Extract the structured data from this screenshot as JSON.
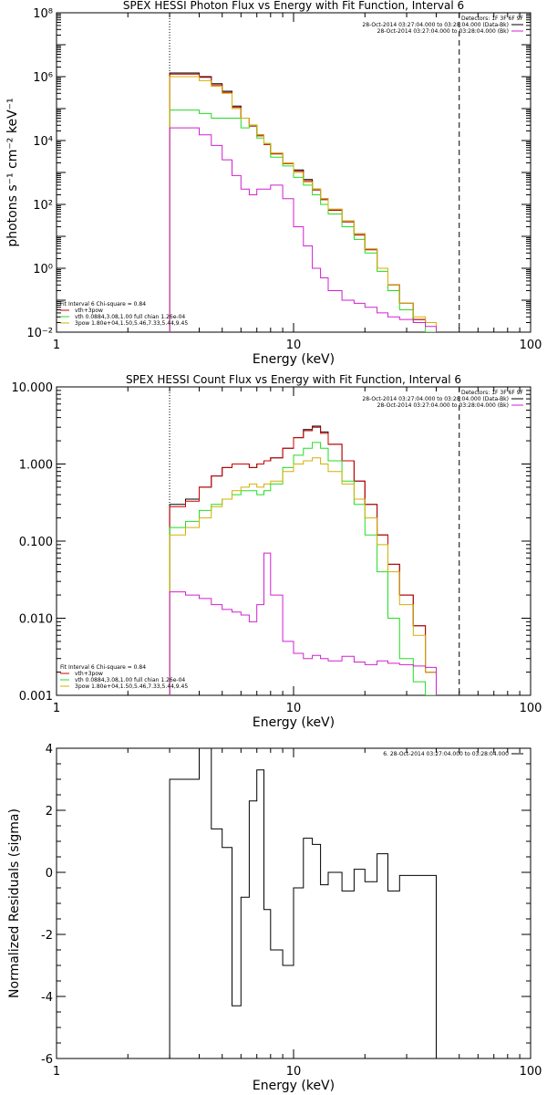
{
  "chart_data": [
    {
      "type": "line",
      "title": "SPEX HESSI Photon Flux vs Energy with Fit Function, Interval 6",
      "xlabel": "Energy (keV)",
      "ylabel": "photons s⁻¹ cm⁻² keV⁻¹",
      "xscale": "log",
      "yscale": "log",
      "xlim": [
        1,
        100
      ],
      "ylim": [
        0.01,
        100000000
      ],
      "xticks": [
        {
          "v": 1,
          "label": "1"
        },
        {
          "v": 10,
          "label": "10"
        },
        {
          "v": 100,
          "label": "100"
        }
      ],
      "yticks": [
        {
          "v": 0.01,
          "label": "10⁻²"
        },
        {
          "v": 1,
          "label": "10⁰"
        },
        {
          "v": 100,
          "label": "10²"
        },
        {
          "v": 10000,
          "label": "10⁴"
        },
        {
          "v": 1000000,
          "label": "10⁶"
        },
        {
          "v": 100000000,
          "label": "10⁸"
        }
      ],
      "vlines": [
        {
          "x": 3.0,
          "style": "dotted"
        },
        {
          "x": 50.0,
          "style": "dashed"
        }
      ],
      "legend_top": [
        {
          "label": "Detectors: 1F 3F 6F 9F",
          "color": ""
        },
        {
          "label": "28-Oct-2014 03:27:04.000 to 03:28:04.000 (Data-Bk)",
          "color": "#000000"
        },
        {
          "label": "28-Oct-2014 03:27:04.000 to 03:28:04.000 (Bk)",
          "color": "#d020d0"
        }
      ],
      "legend_bottom": [
        {
          "label": "Fit Interval 6   Chi-square = 0.84",
          "color": ""
        },
        {
          "label": "vth+3pow",
          "color": "#cc0000"
        },
        {
          "label": "vth 0.0884,3.08,1.00  full chian 1.26e-04",
          "color": "#22dd22"
        },
        {
          "label": "3pow 1.80e+04,1.50,5.46,7.33,5.44,9.45",
          "color": "#d4b000"
        }
      ],
      "series": [
        {
          "color": "#000000",
          "values": [
            1300000.0,
            1300000.0,
            1000000.0,
            600000.0,
            350000.0,
            120000.0,
            50000.0,
            30000.0,
            15000.0,
            8000.0,
            4000.0,
            2000.0,
            1200.0,
            600.0,
            300.0,
            150.0,
            70,
            30,
            12,
            4,
            1,
            0.3,
            0.08,
            0.025,
            0.02
          ]
        },
        {
          "color": "#cc0000",
          "values": [
            1200000.0,
            1200000.0,
            950000.0,
            550000.0,
            320000.0,
            110000.0,
            50000.0,
            28000.0,
            14000.0,
            7500.0,
            3800.0,
            1900.0,
            1100.0,
            550.0,
            280.0,
            140.0,
            65,
            28,
            11,
            3.8,
            1,
            0.3,
            0.08,
            0.025,
            0.02
          ]
        },
        {
          "color": "#22dd22",
          "values": [
            90000.0,
            90000.0,
            70000.0,
            50000.0,
            50000.0,
            50000.0,
            25000.0,
            30000.0,
            12000.0,
            8000.0,
            3000.0,
            1600.0,
            700.0,
            400.0,
            200.0,
            100.0,
            50,
            20,
            8,
            3,
            0.8,
            0.2,
            0.05,
            0.02,
            0.01
          ]
        },
        {
          "color": "#d4b000",
          "values": [
            1000000.0,
            1000000.0,
            750000.0,
            500000.0,
            300000.0,
            100000.0,
            50000.0,
            30000.0,
            15000.0,
            8000.0,
            4000.0,
            2000.0,
            1000.0,
            500.0,
            300.0,
            150.0,
            70,
            30,
            12,
            4,
            1,
            0.3,
            0.08,
            0.03,
            0.02
          ]
        },
        {
          "color": "#d020d0",
          "values": [
            25000.0,
            25000.0,
            15000.0,
            7000.0,
            2500.0,
            800.0,
            300.0,
            200.0,
            300.0,
            300.0,
            400.0,
            150.0,
            20,
            5,
            1,
            0.5,
            0.2,
            0.1,
            0.08,
            0.06,
            0.04,
            0.03,
            0.025,
            0.02,
            0.015
          ]
        }
      ]
    },
    {
      "type": "line",
      "title": "SPEX HESSI Count Flux vs Energy with Fit Function, Interval 6",
      "xlabel": "Energy (keV)",
      "ylabel": "",
      "xscale": "log",
      "yscale": "log",
      "xlim": [
        1,
        100
      ],
      "ylim": [
        0.001,
        10
      ],
      "xticks": [
        {
          "v": 1,
          "label": "1"
        },
        {
          "v": 10,
          "label": "10"
        },
        {
          "v": 100,
          "label": "100"
        }
      ],
      "yticks": [
        {
          "v": 0.001,
          "label": "0.001"
        },
        {
          "v": 0.01,
          "label": "0.010"
        },
        {
          "v": 0.1,
          "label": "0.100"
        },
        {
          "v": 1,
          "label": "1.000"
        },
        {
          "v": 10,
          "label": "10.000"
        }
      ],
      "vlines": [
        {
          "x": 3.0,
          "style": "dotted"
        },
        {
          "x": 50.0,
          "style": "dashed"
        }
      ],
      "legend_top": [
        {
          "label": "Detectors: 1F 3F 6F 9F",
          "color": ""
        },
        {
          "label": "28-Oct-2014 03:27:04.000 to 03:28:04.000 (Data-Bk)",
          "color": "#000000"
        },
        {
          "label": "28-Oct-2014 03:27:04.000 to 03:28:04.000 (Bk)",
          "color": "#d020d0"
        }
      ],
      "legend_bottom": [
        {
          "label": "Fit Interval 6   Chi-square = 0.84",
          "color": ""
        },
        {
          "label": "vth+3pow",
          "color": "#cc0000"
        },
        {
          "label": "vth 0.0884,3.08,1.00  full chian 1.26e-04",
          "color": "#22dd22"
        },
        {
          "label": "3pow 1.80e+04,1.50,5.46,7.33,5.44,9.45",
          "color": "#d4b000"
        }
      ],
      "series": [
        {
          "color": "#000000",
          "values": [
            0.3,
            0.35,
            0.5,
            0.7,
            0.9,
            1.0,
            1.0,
            0.9,
            1.0,
            1.1,
            1.2,
            1.6,
            2.2,
            2.8,
            3.1,
            2.6,
            1.8,
            1.1,
            0.6,
            0.3,
            0.12,
            0.05,
            0.02,
            0.008,
            0.002
          ]
        },
        {
          "color": "#cc0000",
          "values": [
            0.28,
            0.33,
            0.5,
            0.7,
            0.9,
            1.0,
            1.0,
            0.9,
            1.0,
            1.1,
            1.2,
            1.6,
            2.2,
            2.7,
            3.0,
            2.5,
            1.8,
            1.1,
            0.6,
            0.3,
            0.12,
            0.05,
            0.02,
            0.008,
            0.002
          ]
        },
        {
          "color": "#22dd22",
          "values": [
            0.15,
            0.18,
            0.25,
            0.3,
            0.35,
            0.4,
            0.45,
            0.45,
            0.4,
            0.45,
            0.55,
            0.9,
            1.3,
            1.6,
            1.9,
            1.6,
            1.1,
            0.6,
            0.3,
            0.12,
            0.04,
            0.01,
            0.003,
            0.0015,
            0.001
          ]
        },
        {
          "color": "#d4b000",
          "values": [
            0.12,
            0.15,
            0.2,
            0.28,
            0.35,
            0.45,
            0.5,
            0.55,
            0.5,
            0.55,
            0.6,
            0.8,
            1.0,
            1.1,
            1.2,
            1.0,
            0.8,
            0.55,
            0.35,
            0.2,
            0.09,
            0.04,
            0.015,
            0.006,
            0.002
          ]
        },
        {
          "color": "#d020d0",
          "values": [
            0.022,
            0.02,
            0.018,
            0.015,
            0.013,
            0.012,
            0.011,
            0.009,
            0.015,
            0.07,
            0.02,
            0.005,
            0.0035,
            0.003,
            0.0033,
            0.003,
            0.0028,
            0.0032,
            0.0027,
            0.0025,
            0.0028,
            0.0026,
            0.0025,
            0.0024,
            0.0023
          ]
        }
      ]
    },
    {
      "type": "line",
      "title": "",
      "xlabel": "Energy (keV)",
      "ylabel": "Normalized Residuals (sigma)",
      "xscale": "log",
      "yscale": "linear",
      "xlim": [
        1,
        100
      ],
      "ylim": [
        -6,
        4
      ],
      "xticks": [
        {
          "v": 1,
          "label": "1"
        },
        {
          "v": 10,
          "label": "10"
        },
        {
          "v": 100,
          "label": "100"
        }
      ],
      "yticks": [
        {
          "v": -6,
          "label": "-6"
        },
        {
          "v": -4,
          "label": "-4"
        },
        {
          "v": -2,
          "label": "-2"
        },
        {
          "v": 0,
          "label": "0"
        },
        {
          "v": 2,
          "label": "2"
        },
        {
          "v": 4,
          "label": "4"
        }
      ],
      "vlines": [],
      "legend_top": [
        {
          "label": "6. 28-Oct-2014 03:27:04.000 to 03:28:04.000",
          "color": "#000000"
        }
      ],
      "legend_bottom": [],
      "series": [
        {
          "color": "#000000",
          "values": [
            3.0,
            3.0,
            4.0,
            1.4,
            0.8,
            -4.3,
            -0.8,
            2.3,
            3.3,
            -1.2,
            -2.5,
            -3.0,
            -0.5,
            1.1,
            0.9,
            -0.4,
            0.0,
            -0.6,
            0.1,
            -0.3,
            0.6,
            -0.6,
            -0.1,
            -0.1,
            -0.1
          ]
        }
      ]
    }
  ]
}
